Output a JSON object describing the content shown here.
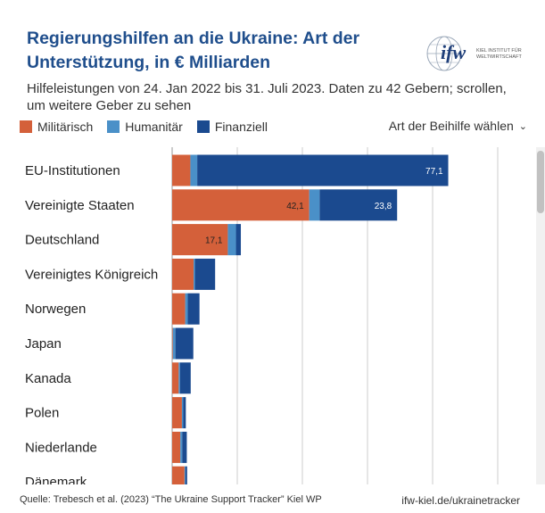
{
  "header": {
    "title": "Regierungshilfen an die Ukraine: Art der Unterstützung, in € Milliarden",
    "subtitle": "Hilfeleistungen von 24. Jan 2022 bis 31. Juli 2023. Daten zu 42 Gebern; scrollen, um weitere Geber zu sehen",
    "logo_text": "ifw",
    "logo_caption_1": "KIEL INSTITUT FÜR",
    "logo_caption_2": "WELTWIRTSCHAFT"
  },
  "legend": [
    {
      "label": "Militärisch",
      "color": "#d4603a"
    },
    {
      "label": "Humanitär",
      "color": "#4a90c8"
    },
    {
      "label": "Finanziell",
      "color": "#1b4a8f"
    }
  ],
  "selector": {
    "label": "Art der Beihilfe wählen",
    "icon": "chevron-down-icon"
  },
  "footer": {
    "source": "Quelle: Trebesch et al. (2023) “The Ukraine Support Tracker” Kiel WP",
    "link": "ifw-kiel.de/ukrainetracker"
  },
  "chart_data": {
    "type": "bar",
    "orientation": "horizontal",
    "stacked": true,
    "categories": [
      "EU-Institutionen",
      "Vereinigte Staaten",
      "Deutschland",
      "Vereinigtes Königreich",
      "Norwegen",
      "Japan",
      "Kanada",
      "Polen",
      "Niederlande",
      "Dänemark"
    ],
    "series": [
      {
        "name": "Militärisch",
        "color": "#d4603a",
        "values": [
          5.6,
          42.1,
          17.1,
          6.6,
          4.0,
          0.2,
          2.0,
          3.0,
          2.5,
          3.8
        ]
      },
      {
        "name": "Humanitär",
        "color": "#4a90c8",
        "values": [
          2.1,
          3.2,
          2.5,
          0.4,
          0.8,
          0.8,
          0.4,
          0.4,
          0.6,
          0.3
        ]
      },
      {
        "name": "Finanziell",
        "color": "#1b4a8f",
        "values": [
          77.1,
          23.8,
          1.5,
          6.2,
          3.6,
          5.5,
          3.3,
          0.8,
          1.4,
          0.5
        ]
      }
    ],
    "data_labels": [
      {
        "category": "EU-Institutionen",
        "series": "Finanziell",
        "text": "77,1"
      },
      {
        "category": "Vereinigte Staaten",
        "series": "Militärisch",
        "text": "42,1"
      },
      {
        "category": "Vereinigte Staaten",
        "series": "Finanziell",
        "text": "23,8"
      },
      {
        "category": "Deutschland",
        "series": "Militärisch",
        "text": "17,1"
      }
    ],
    "xlim": [
      0,
      110
    ],
    "grid_values": [
      20,
      40,
      60,
      80,
      100
    ],
    "grid": true,
    "legend_position": "top-left"
  }
}
